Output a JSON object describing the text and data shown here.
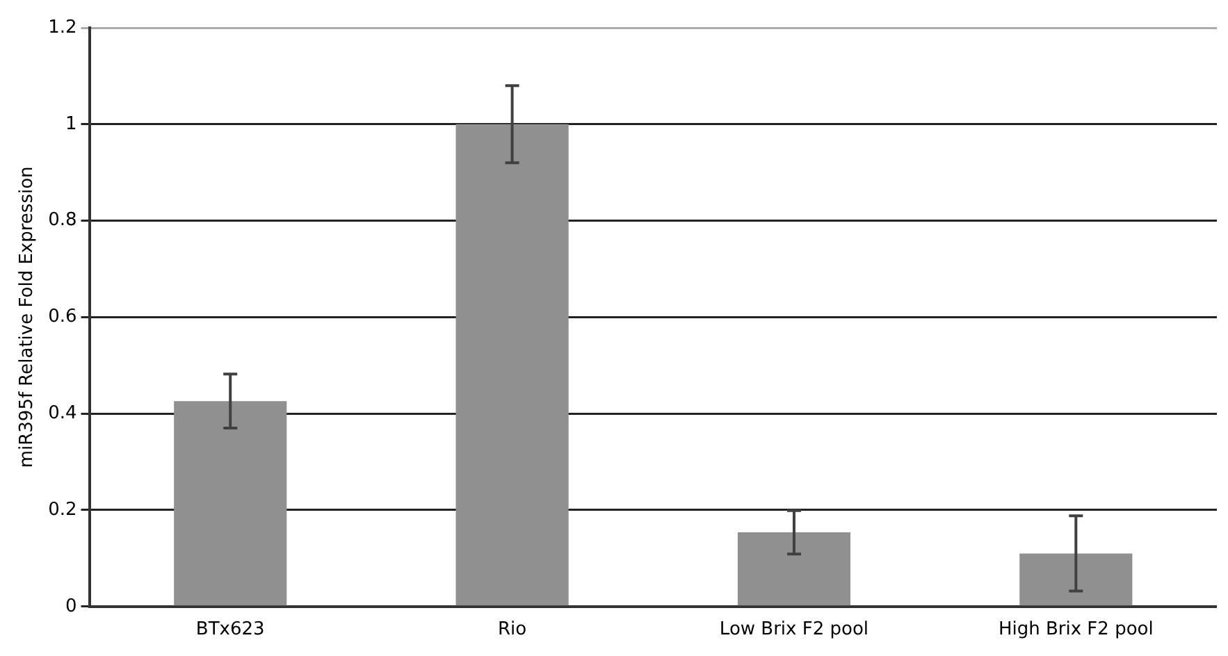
{
  "chart_data": {
    "type": "bar",
    "ylabel": "miR395f Relative Fold Expression",
    "categories": [
      "BTx623",
      "Rio",
      "Low Brix F2 pool",
      "High Brix F2 pool"
    ],
    "values": [
      0.426,
      1.0,
      0.154,
      0.11
    ],
    "errors": [
      0.056,
      0.08,
      0.045,
      0.078
    ],
    "color": "#909090",
    "ylim": [
      0,
      1.2
    ],
    "yticks": [
      0,
      0.2,
      0.4,
      0.6,
      0.8,
      1,
      1.2
    ],
    "grid": "y",
    "legend": false
  }
}
